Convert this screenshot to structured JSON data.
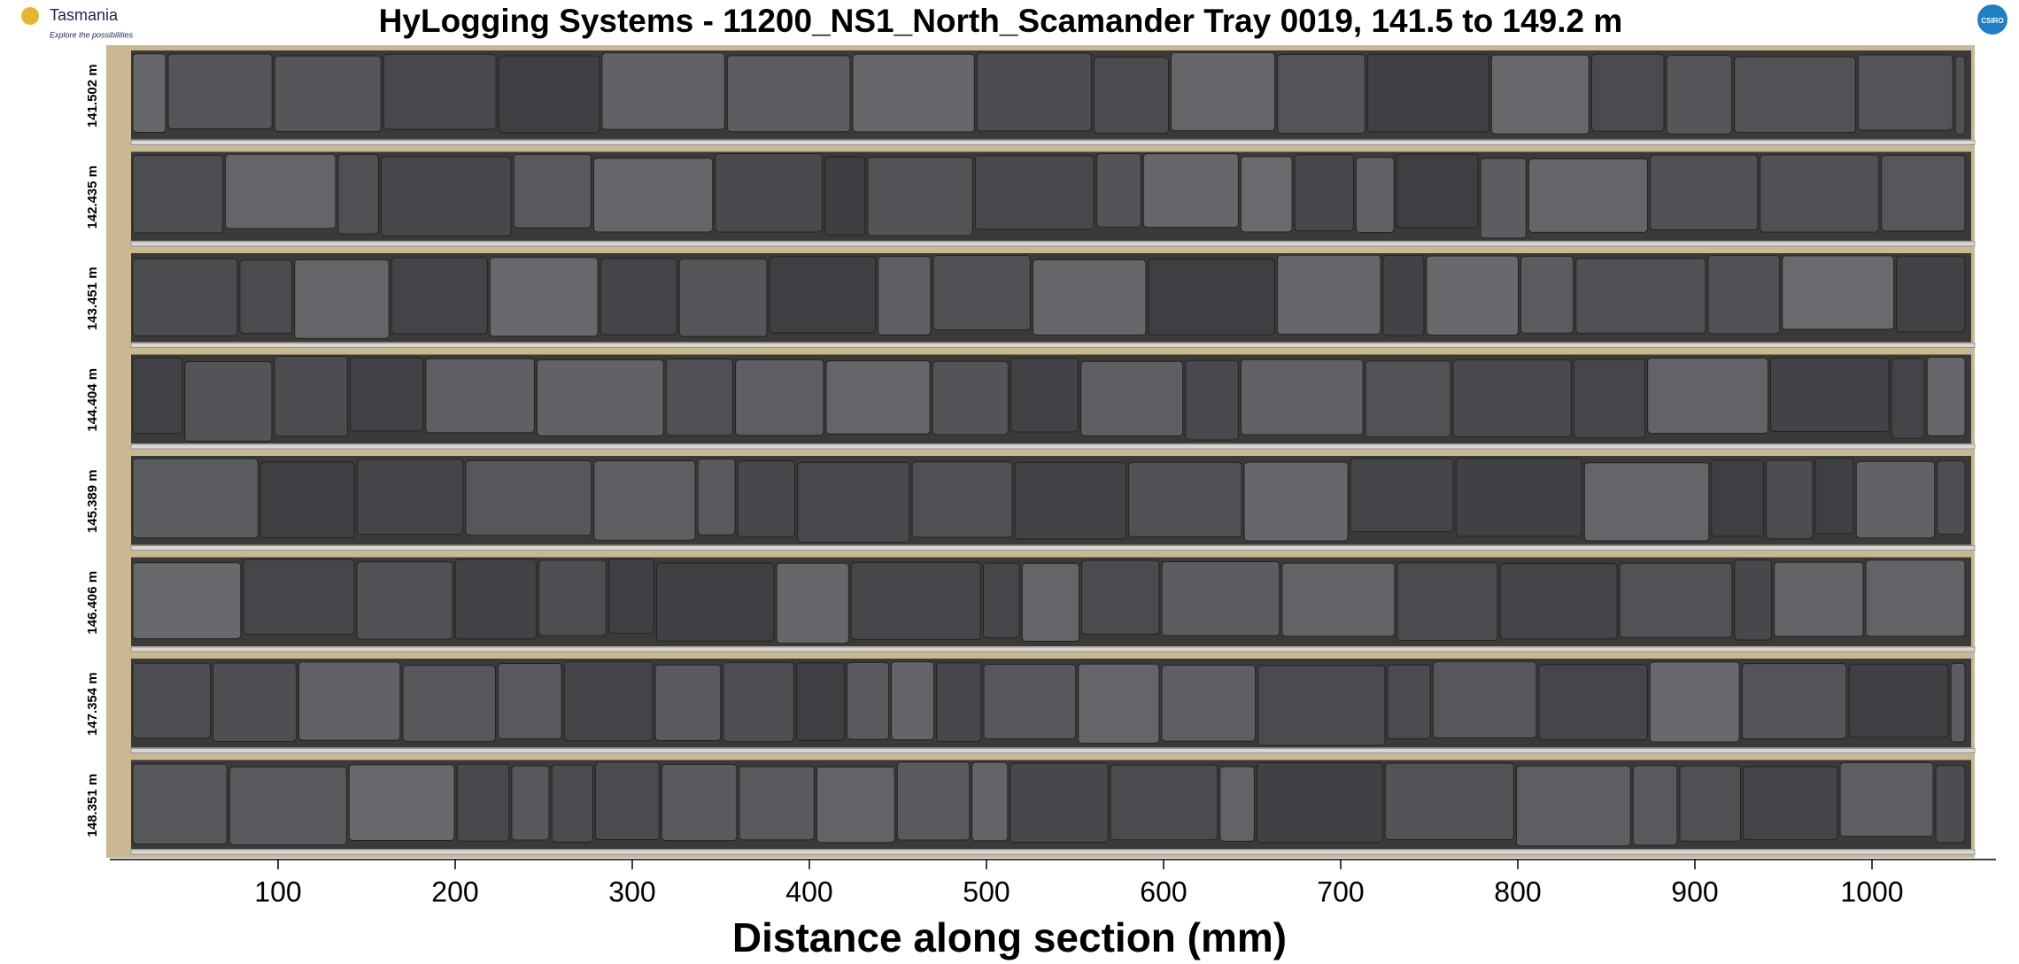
{
  "header": {
    "title": "HyLogging Systems  -  11200_NS1_North_Scamander  Tray 0019,  141.5 to 149.2 m",
    "logo_left": "Tasmania",
    "logo_left_tagline": "Explore the possibilities",
    "logo_right": "CSIRO"
  },
  "tray": {
    "row_labels": [
      "141.502 m",
      "142.435 m",
      "143.451 m",
      "144.404 m",
      "145.389 m",
      "146.406 m",
      "147.354 m",
      "148.351 m"
    ]
  },
  "axis": {
    "xlabel": "Distance along section (mm)",
    "xlim": [
      5,
      1070
    ],
    "xticks": [
      100,
      200,
      300,
      400,
      500,
      600,
      700,
      800,
      900,
      1000
    ]
  }
}
